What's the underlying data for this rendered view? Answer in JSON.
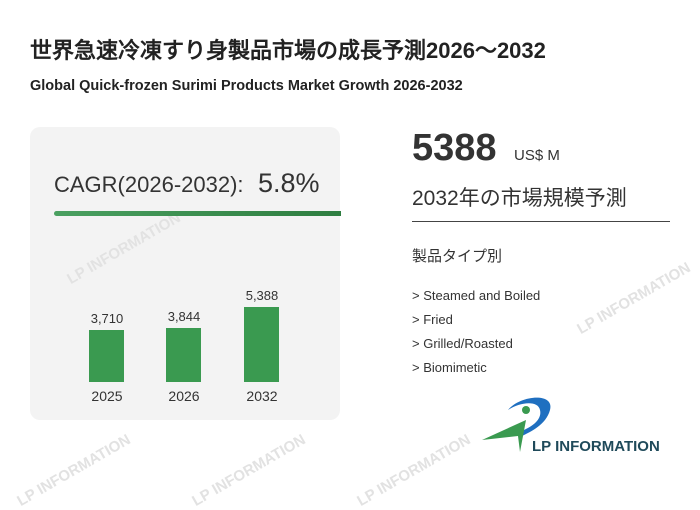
{
  "header": {
    "title": "世界急速冷凍すり身製品市場の成長予測2026～2032",
    "subtitle": "Global Quick-frozen Surimi Products Market Growth 2026-2032"
  },
  "cagr": {
    "label": "CAGR(2026-2032):",
    "value": "5.8%"
  },
  "chart_data": {
    "type": "bar",
    "categories": [
      "2025",
      "2026",
      "2032"
    ],
    "values": [
      3710,
      3844,
      5388
    ],
    "value_labels": [
      "3,710",
      "3,844",
      "5,388"
    ],
    "ylim": [
      0,
      5388
    ]
  },
  "highlight": {
    "value": "5388",
    "unit": "US$ M",
    "description": "2032年の市場規模予測"
  },
  "segments": {
    "title": "製品タイプ別",
    "items": [
      "> Steamed and Boiled",
      "> Fried",
      "> Grilled/Roasted",
      "> Biomimetic"
    ]
  },
  "logo": {
    "text": "LP INFORMATION"
  },
  "watermark": "LP INFORMATION",
  "colors": {
    "bar": "#3a9a50",
    "logo_blue": "#1f6fc0",
    "logo_green": "#3a9a50",
    "logo_text": "#1f4a5a"
  }
}
